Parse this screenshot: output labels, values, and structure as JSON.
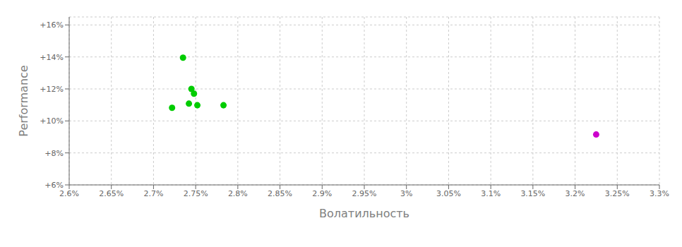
{
  "chart_data": {
    "type": "scatter",
    "xlabel": "Волатильность",
    "ylabel": "Performance",
    "xlim": [
      0.026,
      0.033
    ],
    "ylim": [
      0.06,
      0.165
    ],
    "xticks": [
      {
        "value": 0.026,
        "label": "2.6%"
      },
      {
        "value": 0.0265,
        "label": "2.65%"
      },
      {
        "value": 0.027,
        "label": "2.7%"
      },
      {
        "value": 0.0275,
        "label": "2.75%"
      },
      {
        "value": 0.028,
        "label": "2.8%"
      },
      {
        "value": 0.0285,
        "label": "2.85%"
      },
      {
        "value": 0.029,
        "label": "2.9%"
      },
      {
        "value": 0.0295,
        "label": "2.95%"
      },
      {
        "value": 0.03,
        "label": "3%"
      },
      {
        "value": 0.0305,
        "label": "3.05%"
      },
      {
        "value": 0.031,
        "label": "3.1%"
      },
      {
        "value": 0.0315,
        "label": "3.15%"
      },
      {
        "value": 0.032,
        "label": "3.2%"
      },
      {
        "value": 0.0325,
        "label": "3.25%"
      },
      {
        "value": 0.033,
        "label": "3.3%"
      }
    ],
    "yticks": [
      {
        "value": 0.06,
        "label": "+6%"
      },
      {
        "value": 0.08,
        "label": "+8%"
      },
      {
        "value": 0.1,
        "label": "+10%"
      },
      {
        "value": 0.12,
        "label": "+12%"
      },
      {
        "value": 0.14,
        "label": "+14%"
      },
      {
        "value": 0.16,
        "label": "+16%"
      }
    ],
    "grid": true,
    "series": [
      {
        "color": "#00cc00",
        "x": [
          0.02735,
          0.02745,
          0.02748,
          0.02742,
          0.02752,
          0.02722,
          0.02783
        ],
        "values": [
          0.1395,
          0.12,
          0.117,
          0.1108,
          0.1098,
          0.1082,
          0.1098
        ]
      },
      {
        "color": "#cc00cc",
        "x": [
          0.03225
        ],
        "values": [
          0.0915
        ]
      }
    ]
  }
}
